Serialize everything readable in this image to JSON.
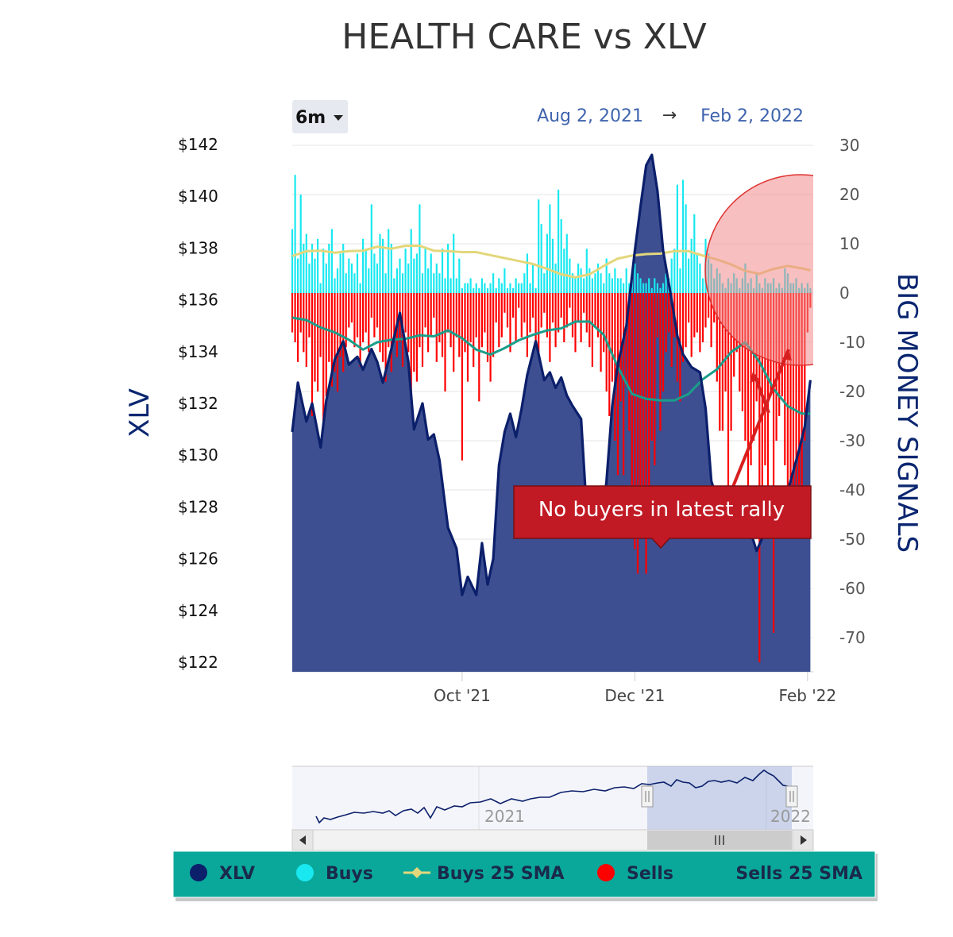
{
  "chart_data": {
    "type": "bar",
    "title": "HEALTH CARE vs XLV",
    "range_selector": "6m",
    "date_from": "Aug 2, 2021",
    "date_arrow": "→",
    "date_to": "Feb 2, 2022",
    "y_left_label": "XLV",
    "y_right_label": "BIG MONEY SIGNALS",
    "y_left_ticks": [
      "$142",
      "$140",
      "$138",
      "$136",
      "$134",
      "$132",
      "$130",
      "$128",
      "$126",
      "$124",
      "$122"
    ],
    "y_left_range": [
      122,
      142
    ],
    "y_right_ticks": [
      "30",
      "20",
      "10",
      "0",
      "-10",
      "-20",
      "-30",
      "-40",
      "-50",
      "-60",
      "-70"
    ],
    "y_right_range": [
      -77,
      30
    ],
    "x_ticks": [
      "Oct '21",
      "Dec '21",
      "Feb '22"
    ],
    "x_tick_days": [
      60,
      121,
      182
    ],
    "day_range": [
      0,
      184
    ],
    "annotation": "No buyers in latest rally",
    "navigator_labels": [
      "2021",
      "2022"
    ],
    "legend": [
      "XLV",
      "Buys",
      "Buys 25 SMA",
      "Sells",
      "Sells 25 SMA"
    ],
    "colors": {
      "xlv_line": "#0b1f6b",
      "xlv_fill": "#3d4f91",
      "buys": "#19e8f0",
      "buys_sma": "#e3d77c",
      "sells": "#ff0000",
      "sells_sma": "#1a9e8a",
      "legend_bg": "#0aa89a",
      "callout_bg": "#c11a24",
      "highlight": "#f08a8a"
    },
    "series": [
      {
        "name": "XLV",
        "x": [
          0,
          2,
          5,
          7,
          10,
          12,
          15,
          18,
          20,
          23,
          25,
          28,
          30,
          32,
          35,
          38,
          41,
          43,
          46,
          48,
          50,
          52,
          55,
          58,
          60,
          62,
          65,
          67,
          69,
          71,
          73,
          75,
          77,
          79,
          81,
          83,
          86,
          89,
          91,
          93,
          95,
          97,
          99,
          102,
          104,
          106,
          109,
          111,
          113,
          115,
          118,
          121,
          123,
          125,
          127,
          129,
          131,
          134,
          136,
          138,
          141,
          144,
          146,
          148,
          150,
          152,
          154,
          156,
          158,
          160,
          162,
          164,
          166,
          168,
          170,
          172,
          174,
          175,
          177,
          179,
          181,
          183
        ],
        "y": [
          130.9,
          132.8,
          131.3,
          132.0,
          130.3,
          132.1,
          133.7,
          134.4,
          133.5,
          133.8,
          133.3,
          134.1,
          133.6,
          132.8,
          134.1,
          135.5,
          133.6,
          131.0,
          132.0,
          130.6,
          130.8,
          129.8,
          127.2,
          126.4,
          124.6,
          125.3,
          124.6,
          126.6,
          125.0,
          126.0,
          129.6,
          130.9,
          131.6,
          130.7,
          131.8,
          133.1,
          134.4,
          132.9,
          133.2,
          132.6,
          133.0,
          132.3,
          131.9,
          131.4,
          127.8,
          128.6,
          127.0,
          129.0,
          131.9,
          133.5,
          135.0,
          137.9,
          139.6,
          141.2,
          141.6,
          140.2,
          137.9,
          136.0,
          134.6,
          133.9,
          133.4,
          133.2,
          131.8,
          129.0,
          128.3,
          127.2,
          127.4,
          127.9,
          128.5,
          127.8,
          127.0,
          126.3,
          126.8,
          127.5,
          128.4,
          128.2,
          128.1,
          128.6,
          129.4,
          130.2,
          131.1,
          132.9
        ]
      },
      {
        "name": "Buys",
        "x": [
          0,
          1,
          2,
          3,
          4,
          5,
          6,
          7,
          8,
          9,
          10,
          11,
          12,
          13,
          14,
          15,
          16,
          17,
          18,
          19,
          20,
          21,
          22,
          23,
          24,
          25,
          26,
          27,
          28,
          29,
          30,
          31,
          32,
          33,
          34,
          35,
          36,
          37,
          38,
          39,
          40,
          41,
          42,
          43,
          44,
          45,
          46,
          47,
          48,
          49,
          50,
          51,
          52,
          53,
          54,
          55,
          56,
          57,
          58,
          59,
          60,
          61,
          62,
          63,
          64,
          65,
          66,
          67,
          68,
          69,
          70,
          71,
          72,
          73,
          74,
          75,
          76,
          77,
          78,
          79,
          80,
          81,
          82,
          83,
          84,
          85,
          86,
          87,
          88,
          89,
          90,
          91,
          92,
          93,
          94,
          95,
          96,
          97,
          98,
          99,
          100,
          101,
          102,
          103,
          104,
          105,
          106,
          107,
          108,
          109,
          110,
          111,
          112,
          113,
          114,
          115,
          116,
          117,
          118,
          119,
          120,
          121,
          122,
          123,
          124,
          125,
          126,
          127,
          128,
          129,
          130,
          131,
          132,
          133,
          134,
          135,
          136,
          137,
          138,
          139,
          140,
          141,
          142,
          143,
          144,
          145,
          146,
          147,
          148,
          149,
          150,
          151,
          152,
          153,
          154,
          155,
          156,
          157,
          158,
          159,
          160,
          161,
          162,
          163,
          164,
          165,
          166,
          167,
          168,
          169,
          170,
          171,
          172,
          173,
          174,
          175,
          176,
          177,
          178,
          179,
          180,
          181,
          182,
          183
        ],
        "y": [
          13,
          24,
          7,
          20,
          10,
          12,
          6,
          10,
          7,
          11,
          2,
          9,
          6,
          10,
          13,
          3,
          5,
          8,
          10,
          4,
          7,
          6,
          4,
          8,
          2,
          11,
          9,
          5,
          18,
          8,
          6,
          12,
          11,
          4,
          13,
          10,
          3,
          5,
          7,
          4,
          9,
          6,
          13,
          7,
          8,
          18,
          4,
          9,
          5,
          8,
          4,
          6,
          4,
          9,
          3,
          10,
          3,
          12,
          3,
          7,
          1,
          2,
          2,
          3,
          1,
          2,
          1,
          3,
          2,
          1,
          2,
          4,
          1,
          3,
          2,
          5,
          1,
          2,
          1,
          3,
          2,
          2,
          4,
          8,
          2,
          6,
          1,
          19,
          14,
          4,
          12,
          18,
          11,
          6,
          21,
          15,
          9,
          12,
          7,
          4,
          3,
          6,
          5,
          3,
          9,
          5,
          3,
          4,
          6,
          4,
          2,
          7,
          4,
          3,
          5,
          3,
          3,
          2,
          5,
          2,
          4,
          6,
          4,
          3,
          2,
          2,
          3,
          1,
          3,
          2,
          1,
          2,
          4,
          3,
          7,
          9,
          22,
          5,
          23,
          18,
          7,
          11,
          16,
          8,
          6,
          3,
          11,
          8,
          6,
          3,
          5,
          4,
          2,
          1,
          3,
          2,
          4,
          3,
          1,
          3,
          6,
          2,
          3,
          1,
          4,
          2,
          1,
          3,
          2,
          2,
          3,
          1,
          2,
          1,
          5,
          4,
          2,
          2,
          3,
          1,
          2,
          1,
          2,
          1
        ]
      },
      {
        "name": "Buys 25 SMA",
        "x": [
          0,
          5,
          10,
          15,
          20,
          25,
          30,
          35,
          40,
          45,
          50,
          55,
          60,
          65,
          70,
          75,
          80,
          85,
          90,
          95,
          100,
          105,
          110,
          115,
          120,
          125,
          130,
          135,
          140,
          145,
          150,
          155,
          160,
          165,
          170,
          175,
          180,
          183
        ],
        "y": [
          7.5,
          8.5,
          8.6,
          8.2,
          8.5,
          8.6,
          9.4,
          9.0,
          9.6,
          9.6,
          8.6,
          8.5,
          8.3,
          8.3,
          7.7,
          7.1,
          6.5,
          5.9,
          4.9,
          3.8,
          3.2,
          3.8,
          5.5,
          7.0,
          7.6,
          7.9,
          8.0,
          8.5,
          8.5,
          7.6,
          6.8,
          5.8,
          4.5,
          3.9,
          4.9,
          5.5,
          5.0,
          4.6
        ]
      },
      {
        "name": "Sells",
        "x": [
          0,
          1,
          2,
          3,
          4,
          5,
          6,
          7,
          8,
          9,
          10,
          11,
          12,
          13,
          14,
          15,
          16,
          17,
          18,
          19,
          20,
          21,
          22,
          23,
          24,
          25,
          26,
          27,
          28,
          29,
          30,
          31,
          32,
          33,
          34,
          35,
          36,
          37,
          38,
          39,
          40,
          41,
          42,
          43,
          44,
          45,
          46,
          47,
          48,
          49,
          50,
          51,
          52,
          53,
          54,
          55,
          56,
          57,
          58,
          59,
          60,
          61,
          62,
          63,
          64,
          65,
          66,
          67,
          68,
          69,
          70,
          71,
          72,
          73,
          74,
          75,
          76,
          77,
          78,
          79,
          80,
          81,
          82,
          83,
          84,
          85,
          86,
          87,
          88,
          89,
          90,
          91,
          92,
          93,
          94,
          95,
          96,
          97,
          98,
          99,
          100,
          101,
          102,
          103,
          104,
          105,
          106,
          107,
          108,
          109,
          110,
          111,
          112,
          113,
          114,
          115,
          116,
          117,
          118,
          119,
          120,
          121,
          122,
          123,
          124,
          125,
          126,
          127,
          128,
          129,
          130,
          131,
          132,
          133,
          134,
          135,
          136,
          137,
          138,
          139,
          140,
          141,
          142,
          143,
          144,
          145,
          146,
          147,
          148,
          149,
          150,
          151,
          152,
          153,
          154,
          155,
          156,
          157,
          158,
          159,
          160,
          161,
          162,
          163,
          164,
          165,
          166,
          167,
          168,
          169,
          170,
          171,
          172,
          173,
          174,
          175,
          176,
          177,
          178,
          179,
          180,
          181,
          182,
          183
        ],
        "y": [
          -8,
          -10,
          -14,
          -8,
          -12,
          -15,
          -9,
          -25,
          -18,
          -20,
          -13,
          -26,
          -21,
          -14,
          -19,
          -16,
          -20,
          -13,
          -16,
          -11,
          -7,
          -6,
          -11,
          -9,
          -15,
          -10,
          -8,
          -12,
          -5,
          -9,
          -7,
          -12,
          -14,
          -18,
          -11,
          -16,
          -9,
          -13,
          -10,
          -15,
          -8,
          -12,
          -20,
          -16,
          -18,
          -11,
          -15,
          -7,
          -12,
          -9,
          -5,
          -14,
          -10,
          -13,
          -20,
          -8,
          -11,
          -16,
          -9,
          -13,
          -34,
          -12,
          -18,
          -10,
          -15,
          -9,
          -22,
          -11,
          -8,
          -14,
          -18,
          -13,
          -6,
          -11,
          -9,
          -4,
          -7,
          -12,
          -5,
          -10,
          -3,
          -9,
          -6,
          -13,
          -8,
          -5,
          -10,
          -12,
          -7,
          -4,
          -9,
          -14,
          -6,
          -11,
          -8,
          -5,
          -10,
          -7,
          -3,
          -9,
          -12,
          -6,
          -10,
          -4,
          -8,
          -11,
          -15,
          -7,
          -9,
          -16,
          -12,
          -20,
          -25,
          -18,
          -30,
          -37,
          -22,
          -37,
          -19,
          -28,
          -40,
          -52,
          -57,
          -42,
          -47,
          -57,
          -45,
          -30,
          -35,
          -9,
          -28,
          -20,
          -12,
          -8,
          -15,
          -9,
          -18,
          -22,
          -14,
          -11,
          -6,
          -13,
          -9,
          -8,
          -12,
          -10,
          -7,
          -5,
          -11,
          -6,
          -18,
          -28,
          -28,
          -20,
          -40,
          -28,
          -17,
          -12,
          -20,
          -24,
          -30,
          -43,
          -35,
          -30,
          -22,
          -75,
          -50,
          -35,
          -40,
          -20,
          -69,
          -30,
          -25,
          -21,
          -35,
          -40,
          -44,
          -47,
          -49,
          -39,
          -44,
          -30,
          -8,
          -3
        ]
      },
      {
        "name": "Sells 25 SMA",
        "x": [
          0,
          5,
          10,
          15,
          20,
          25,
          30,
          35,
          40,
          45,
          50,
          55,
          60,
          65,
          70,
          75,
          80,
          85,
          90,
          95,
          100,
          105,
          110,
          115,
          120,
          125,
          130,
          135,
          140,
          145,
          150,
          155,
          160,
          165,
          170,
          175,
          180,
          183
        ],
        "y": [
          -5.0,
          -5.5,
          -7.0,
          -8.0,
          -9.5,
          -11.5,
          -10.0,
          -9.5,
          -9.3,
          -8.6,
          -8.8,
          -7.6,
          -9.2,
          -11.5,
          -12.5,
          -11.2,
          -9.6,
          -8.5,
          -7.6,
          -7.2,
          -5.8,
          -5.8,
          -8.5,
          -15.0,
          -20.5,
          -21.5,
          -21.8,
          -21.8,
          -20.5,
          -17.5,
          -15.5,
          -12.0,
          -10.0,
          -14.0,
          -19.5,
          -23.0,
          -24.5,
          -24.5
        ]
      }
    ]
  }
}
